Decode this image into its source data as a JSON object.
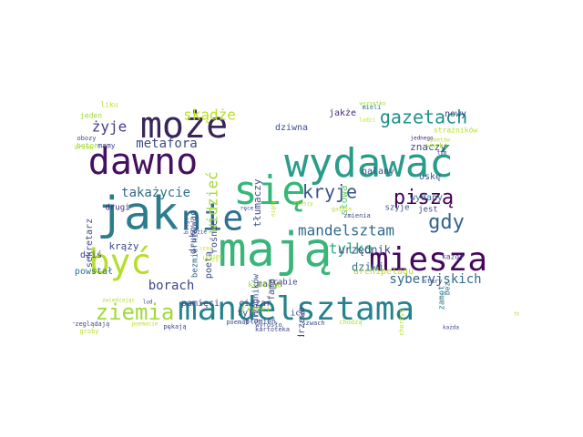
{
  "words": [
    {
      "text": "mają",
      "size": 52,
      "color": "#3ab57a",
      "rot": 0
    },
    {
      "text": "jak",
      "size": 50,
      "color": "#2c7d8c",
      "rot": 0
    },
    {
      "text": "wydawać",
      "size": 44,
      "color": "#2a9d8a",
      "rot": 0
    },
    {
      "text": "dawno",
      "size": 40,
      "color": "#45105f",
      "rot": 0
    },
    {
      "text": "się",
      "size": 44,
      "color": "#35b779",
      "rot": 0
    },
    {
      "text": "może",
      "size": 40,
      "color": "#39255a",
      "rot": 0
    },
    {
      "text": "być",
      "size": 38,
      "color": "#b5de2b",
      "rot": 0
    },
    {
      "text": "nie",
      "size": 38,
      "color": "#2c718e",
      "rot": 0
    },
    {
      "text": "miesza",
      "size": 36,
      "color": "#46085c",
      "rot": 0
    },
    {
      "text": "mandelsztama",
      "size": 36,
      "color": "#25838e",
      "rot": 0
    },
    {
      "text": "ziemia",
      "size": 24,
      "color": "#a0da39",
      "rot": 0
    },
    {
      "text": "gazetach",
      "size": 20,
      "color": "#21918c",
      "rot": 0
    },
    {
      "text": "piszą",
      "size": 22,
      "color": "#440154",
      "rot": 0
    },
    {
      "text": "kryje",
      "size": 20,
      "color": "#3b528b",
      "rot": 0
    },
    {
      "text": "gdy",
      "size": 22,
      "color": "#33638d",
      "rot": 0
    },
    {
      "text": "mandelsztam",
      "size": 16,
      "color": "#30698e",
      "rot": 0
    },
    {
      "text": "skądże",
      "size": 16,
      "color": "#bddf26",
      "rot": 0
    },
    {
      "text": "widzieć",
      "size": 16,
      "color": "#a0da39",
      "rot": -90
    },
    {
      "text": "żyje",
      "size": 16,
      "color": "#433e85",
      "rot": 0
    },
    {
      "text": "metafora",
      "size": 14,
      "color": "#3e4a89",
      "rot": 0
    },
    {
      "text": "taka",
      "size": 14,
      "color": "#31688e",
      "rot": 0
    },
    {
      "text": "życie",
      "size": 14,
      "color": "#2d708e",
      "rot": 0
    },
    {
      "text": "tylko",
      "size": 16,
      "color": "#27ad81",
      "rot": 0
    },
    {
      "text": "syberyjskich",
      "size": 14,
      "color": "#31688e",
      "rot": 0
    },
    {
      "text": "borach",
      "size": 14,
      "color": "#3f4788",
      "rot": 0
    },
    {
      "text": "urzędnik",
      "size": 12,
      "color": "#404688",
      "rot": 0
    },
    {
      "text": "dziwi",
      "size": 12,
      "color": "#2e6f8e",
      "rot": 0
    },
    {
      "text": "krąży",
      "size": 11,
      "color": "#3e4c8a",
      "rot": 0
    },
    {
      "text": "pamięci",
      "size": 10,
      "color": "#414487",
      "rot": 0
    },
    {
      "text": "ciężar",
      "size": 10,
      "color": "#3f4889",
      "rot": 0
    },
    {
      "text": "tyle",
      "size": 10,
      "color": "#414487",
      "rot": 0
    },
    {
      "text": "mały",
      "size": 10,
      "color": "#3d4d8a",
      "rot": 0
    },
    {
      "text": "archipelagu",
      "size": 10,
      "color": "#b8de29",
      "rot": 0
    },
    {
      "text": "znaczy",
      "size": 11,
      "color": "#404588",
      "rot": 0
    },
    {
      "text": "nowy",
      "size": 10,
      "color": "#3e4989",
      "rot": 0
    },
    {
      "text": "dziwna",
      "size": 10,
      "color": "#3b528b",
      "rot": 0
    },
    {
      "text": "jakże",
      "size": 10,
      "color": "#472d7b",
      "rot": 0
    },
    {
      "text": "nalany",
      "size": 10,
      "color": "#3d4e8a",
      "rot": 0
    },
    {
      "text": "oskę",
      "size": 10,
      "color": "#3b528b",
      "rot": 0
    },
    {
      "text": "wydany",
      "size": 10,
      "color": "#2f6c8e",
      "rot": 0
    },
    {
      "text": "szyje",
      "size": 9,
      "color": "#3b528b",
      "rot": 0
    },
    {
      "text": "jest",
      "size": 9,
      "color": "#3f4889",
      "rot": 0
    },
    {
      "text": "słowa",
      "size": 11,
      "color": "#5ec962",
      "rot": -90
    },
    {
      "text": "tłumaczy",
      "size": 11,
      "color": "#3d4e8a",
      "rot": -90
    },
    {
      "text": "rośnie",
      "size": 10,
      "color": "#3e4989",
      "rot": -90
    },
    {
      "text": "poetą",
      "size": 10,
      "color": "#3e4989",
      "rot": -90
    },
    {
      "text": "którego",
      "size": 9,
      "color": "#a5db36",
      "rot": 0
    },
    {
      "text": "drugi",
      "size": 9,
      "color": "#482878",
      "rot": 0
    },
    {
      "text": "dziś",
      "size": 10,
      "color": "#3f4788",
      "rot": 0
    },
    {
      "text": "powstał",
      "size": 10,
      "color": "#2d708e",
      "rot": 0
    },
    {
      "text": "sekretarz",
      "size": 10,
      "color": "#3e4a89",
      "rot": -90
    },
    {
      "text": "bezmiernie",
      "size": 9,
      "color": "#31688e",
      "rot": -90
    },
    {
      "text": "drukować",
      "size": 10,
      "color": "#3e4a89",
      "rot": -90
    },
    {
      "text": "fama",
      "size": 10,
      "color": "#3e4989",
      "rot": -90
    },
    {
      "text": "rąbie",
      "size": 9,
      "color": "#404688",
      "rot": 0
    },
    {
      "text": "drzewo",
      "size": 10,
      "color": "#3e4989",
      "rot": -90
    },
    {
      "text": "ich",
      "size": 9,
      "color": "#3e4a89",
      "rot": 0
    },
    {
      "text": "urzędników",
      "size": 9,
      "color": "#3b528b",
      "rot": -90
    },
    {
      "text": "płomień",
      "size": 8,
      "color": "#3e4989",
      "rot": 0
    },
    {
      "text": "trzeci",
      "size": 9,
      "color": "#b5de2b",
      "rot": 0
    },
    {
      "text": "zamęt",
      "size": 9,
      "color": "#2a788e",
      "rot": -90
    },
    {
      "text": "bez",
      "size": 8,
      "color": "#2d708e",
      "rot": -90
    },
    {
      "text": "każdy",
      "size": 8,
      "color": "#414487",
      "rot": 0
    },
    {
      "text": "jeden",
      "size": 8,
      "color": "#a0da39",
      "rot": 0
    },
    {
      "text": "liku",
      "size": 8,
      "color": "#b8de29",
      "rot": 0
    },
    {
      "text": "obozy",
      "size": 7,
      "color": "#3b528b",
      "rot": 0
    },
    {
      "text": "drzew",
      "size": 7,
      "color": "#bddf26",
      "rot": 0
    },
    {
      "text": "beton",
      "size": 8,
      "color": "#a0da39",
      "rot": 0
    },
    {
      "text": "mamy",
      "size": 8,
      "color": "#3e4a89",
      "rot": 0
    },
    {
      "text": "strażników",
      "size": 8,
      "color": "#b5de2b",
      "rot": 0
    },
    {
      "text": "poetów",
      "size": 6,
      "color": "#b8de29",
      "rot": 0
    },
    {
      "text": "tym",
      "size": 6,
      "color": "#3e4989",
      "rot": 0
    },
    {
      "text": "ludzi",
      "size": 6,
      "color": "#b8de29",
      "rot": 0
    },
    {
      "text": "mieli",
      "size": 7,
      "color": "#2d708e",
      "rot": 0
    },
    {
      "text": "wszystko",
      "size": 6,
      "color": "#a0da39",
      "rot": 0
    },
    {
      "text": "jednego",
      "size": 6,
      "color": "#482878",
      "rot": 0
    },
    {
      "text": "worki",
      "size": 8,
      "color": "#a0da39",
      "rot": 0
    },
    {
      "text": "zmienia",
      "size": 7,
      "color": "#3e4989",
      "rot": 0
    },
    {
      "text": "stary",
      "size": 7,
      "color": "#3e4989",
      "rot": 0
    },
    {
      "text": "kartoteka",
      "size": 7,
      "color": "#3e4989",
      "rot": 0
    },
    {
      "text": "zwiedzając",
      "size": 6,
      "color": "#b5de2b",
      "rot": 0
    },
    {
      "text": "przeglądają",
      "size": 7,
      "color": "#3e4989",
      "rot": 0
    },
    {
      "text": "groby",
      "size": 7,
      "color": "#bddf26",
      "rot": 0
    },
    {
      "text": "poemacie",
      "size": 6,
      "color": "#b8de29",
      "rot": 0
    },
    {
      "text": "pękają",
      "size": 7,
      "color": "#3e4989",
      "rot": 0
    },
    {
      "text": "poemat",
      "size": 7,
      "color": "#3e4989",
      "rot": 0
    },
    {
      "text": "wyrosło",
      "size": 7,
      "color": "#3e4989",
      "rot": 0
    },
    {
      "text": "szwach",
      "size": 7,
      "color": "#3e4989",
      "rot": 0
    },
    {
      "text": "chodzą",
      "size": 7,
      "color": "#b8de29",
      "rot": 0
    },
    {
      "text": "chorbys",
      "size": 7,
      "color": "#b5de2b",
      "rot": -90
    },
    {
      "text": "każda",
      "size": 6,
      "color": "#3e4989",
      "rot": 0
    },
    {
      "text": "tego",
      "size": 6,
      "color": "#b8de29",
      "rot": 0
    },
    {
      "text": "lud",
      "size": 6,
      "color": "#3e4989",
      "rot": 0
    },
    {
      "text": "czas",
      "size": 6,
      "color": "#b8de29",
      "rot": 0
    },
    {
      "text": "ogień",
      "size": 6,
      "color": "#b8de29",
      "rot": 0
    },
    {
      "text": "liczy",
      "size": 6,
      "color": "#b8de29",
      "rot": 0
    },
    {
      "text": "biegu",
      "size": 6,
      "color": "#3e4989",
      "rot": -90
    },
    {
      "text": "gdzie",
      "size": 6,
      "color": "#3e4989",
      "rot": 0
    },
    {
      "text": "nigdy",
      "size": 6,
      "color": "#b8de29",
      "rot": -90
    },
    {
      "text": "cieszy",
      "size": 6,
      "color": "#b5de2b",
      "rot": 0
    },
    {
      "text": "ręce",
      "size": 6,
      "color": "#3e4989",
      "rot": 0
    },
    {
      "text": "gazeta",
      "size": 6,
      "color": "#b8de29",
      "rot": 0
    }
  ]
}
